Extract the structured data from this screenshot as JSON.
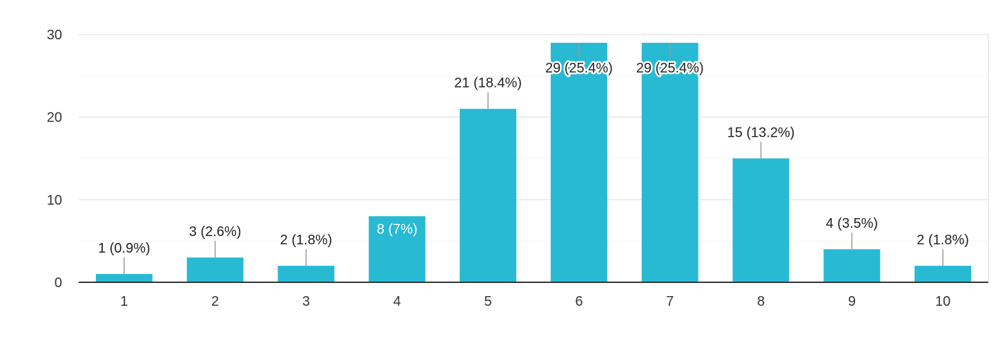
{
  "chart_data": {
    "type": "bar",
    "categories": [
      "1",
      "2",
      "3",
      "4",
      "5",
      "6",
      "7",
      "8",
      "9",
      "10"
    ],
    "values": [
      1,
      3,
      2,
      8,
      21,
      29,
      29,
      15,
      4,
      2
    ],
    "data_labels": [
      "1 (0.9%)",
      "3 (2.6%)",
      "2 (1.8%)",
      "8 (7%)",
      "21 (18.4%)",
      "29 (25.4%)",
      "29 (25.4%)",
      "15 (13.2%)",
      "4 (3.5%)",
      "2 (1.8%)"
    ],
    "y_ticks": [
      0,
      10,
      20,
      30
    ],
    "ylim": [
      0,
      30
    ],
    "bar_color": "#29bad3",
    "grid": true
  }
}
